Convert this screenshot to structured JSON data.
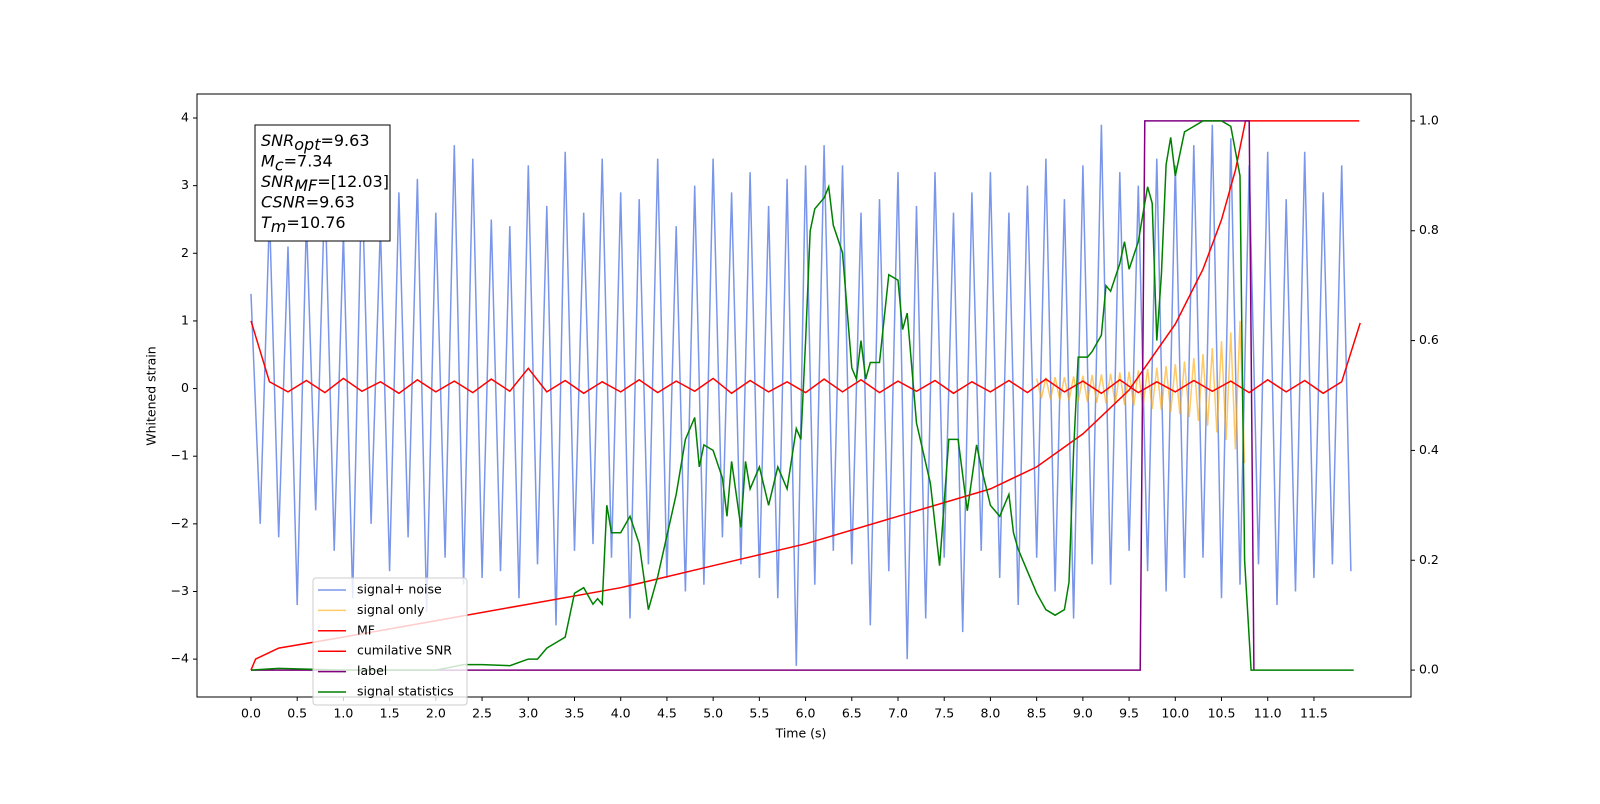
{
  "chart_data": {
    "type": "line",
    "x_label": "Time (s)",
    "y_label": "Whitened strain",
    "xlim": [
      -0.584,
      12.55
    ],
    "ylim": [
      -4.56,
      4.355
    ],
    "y2lim": [
      -0.049,
      1.049
    ],
    "xticks": [
      {
        "value": 0,
        "label": "0.0"
      },
      {
        "value": 0.5,
        "label": "0.5"
      },
      {
        "value": 1,
        "label": "1.0"
      },
      {
        "value": 1.5,
        "label": "1.5"
      },
      {
        "value": 2,
        "label": "2.0"
      },
      {
        "value": 2.5,
        "label": "2.5"
      },
      {
        "value": 3,
        "label": "3.0"
      },
      {
        "value": 3.5,
        "label": "3.5"
      },
      {
        "value": 4,
        "label": "4.0"
      },
      {
        "value": 4.5,
        "label": "4.5"
      },
      {
        "value": 5,
        "label": "5.0"
      },
      {
        "value": 5.5,
        "label": "5.5"
      },
      {
        "value": 6,
        "label": "6.0"
      },
      {
        "value": 6.5,
        "label": "6.5"
      },
      {
        "value": 7,
        "label": "7.0"
      },
      {
        "value": 7.5,
        "label": "7.5"
      },
      {
        "value": 8,
        "label": "8.0"
      },
      {
        "value": 8.5,
        "label": "8.5"
      },
      {
        "value": 9,
        "label": "9.0"
      },
      {
        "value": 9.5,
        "label": "9.5"
      },
      {
        "value": 10,
        "label": "10.0"
      },
      {
        "value": 10.5,
        "label": "10.5"
      },
      {
        "value": 11,
        "label": "11.0"
      },
      {
        "value": 11.5,
        "label": "11.5"
      }
    ],
    "yticks": [
      {
        "value": -4,
        "label": "−4"
      },
      {
        "value": -3,
        "label": "−3"
      },
      {
        "value": -2,
        "label": "−2"
      },
      {
        "value": -1,
        "label": "−1"
      },
      0,
      1,
      2,
      3,
      4
    ],
    "y2ticks": [
      {
        "value": 0,
        "label": "0.0"
      },
      {
        "value": 0.2,
        "label": "0.2"
      },
      {
        "value": 0.4,
        "label": "0.4"
      },
      {
        "value": 0.6,
        "label": "0.6"
      },
      {
        "value": 0.8,
        "label": "0.8"
      },
      {
        "value": 1,
        "label": "1.0"
      }
    ],
    "legend": "lower left",
    "annotation": [
      {
        "main": "SNR",
        "sub": "opt",
        "rest": "=9.63"
      },
      {
        "main": "M",
        "sub": "c",
        "rest": "=7.34"
      },
      {
        "main": "SNR",
        "sub": "MF",
        "rest": "=[12.03]"
      },
      {
        "main": "CSNR",
        "rest": "=9.63"
      },
      {
        "main": "T",
        "sub": "m",
        "rest": "=10.76"
      }
    ],
    "series": [
      {
        "name": "signal+ noise",
        "color": "#4169e1",
        "opacity": 0.7,
        "x": [
          0,
          0.1,
          0.2,
          0.3,
          0.4,
          0.5,
          0.6,
          0.7,
          0.8,
          0.9,
          1,
          1.1,
          1.2,
          1.3,
          1.4,
          1.5,
          1.6,
          1.7,
          1.8,
          1.9,
          2,
          2.1,
          2.2,
          2.3,
          2.4,
          2.5,
          2.6,
          2.7,
          2.8,
          2.9,
          3,
          3.1,
          3.2,
          3.3,
          3.4,
          3.5,
          3.6,
          3.7,
          3.8,
          3.9,
          4,
          4.1,
          4.2,
          4.3,
          4.4,
          4.5,
          4.6,
          4.7,
          4.8,
          4.9,
          5,
          5.1,
          5.2,
          5.3,
          5.4,
          5.5,
          5.6,
          5.7,
          5.8,
          5.9,
          6,
          6.1,
          6.2,
          6.3,
          6.4,
          6.5,
          6.6,
          6.7,
          6.8,
          6.9,
          7,
          7.1,
          7.2,
          7.3,
          7.4,
          7.5,
          7.6,
          7.7,
          7.8,
          7.9,
          8,
          8.1,
          8.2,
          8.3,
          8.4,
          8.5,
          8.6,
          8.7,
          8.8,
          8.9,
          9,
          9.1,
          9.2,
          9.3,
          9.4,
          9.5,
          9.6,
          9.7,
          9.8,
          9.9,
          10,
          10.1,
          10.2,
          10.3,
          10.4,
          10.5,
          10.6,
          10.7,
          10.8,
          10.9,
          11,
          11.1,
          11.2,
          11.3,
          11.4,
          11.5,
          11.6,
          11.7,
          11.8,
          11.9
        ],
        "values": [
          1.4,
          -2.0,
          2.6,
          -2.2,
          2.1,
          -3.2,
          2.5,
          -1.8,
          3.0,
          -2.4,
          2.3,
          -3.1,
          3.2,
          -2.0,
          2.4,
          -2.7,
          2.9,
          -2.2,
          3.1,
          -3.3,
          2.6,
          -2.5,
          3.6,
          -2.9,
          3.4,
          -2.8,
          2.5,
          -2.7,
          2.4,
          -3.1,
          3.3,
          -2.6,
          2.7,
          -3.5,
          3.5,
          -2.4,
          2.6,
          -2.3,
          3.4,
          -2.5,
          2.9,
          -3.4,
          2.8,
          -2.6,
          3.4,
          -2.8,
          2.4,
          -3.0,
          3.0,
          -2.9,
          3.4,
          -2.2,
          2.9,
          -2.6,
          3.2,
          -2.8,
          2.7,
          -3.1,
          3.1,
          -4.1,
          3.3,
          -2.9,
          3.6,
          -2.4,
          3.3,
          -2.6,
          2.6,
          -3.5,
          2.8,
          -2.7,
          3.2,
          -4.0,
          2.7,
          -3.4,
          3.2,
          -2.5,
          2.6,
          -3.6,
          2.9,
          -2.4,
          3.2,
          -2.8,
          2.6,
          -3.2,
          3.0,
          -2.5,
          3.4,
          -3.0,
          2.8,
          -3.4,
          3.3,
          -2.6,
          3.9,
          -2.9,
          3.2,
          -2.4,
          3.0,
          -2.7,
          3.4,
          -3.0,
          3.3,
          -2.8,
          3.6,
          -2.5,
          3.9,
          -3.1,
          3.7,
          -2.9,
          3.3,
          -2.6,
          3.5,
          -3.2,
          2.8,
          -3.0,
          3.5,
          -2.8,
          2.9,
          -2.6,
          3.3,
          -2.7
        ]
      },
      {
        "name": "signal only",
        "color": "#ffa500",
        "opacity": 0.6,
        "x": [
          8.5,
          8.55,
          8.6,
          8.65,
          8.7,
          8.75,
          8.8,
          8.85,
          8.9,
          8.95,
          9,
          9.05,
          9.1,
          9.15,
          9.2,
          9.25,
          9.3,
          9.35,
          9.4,
          9.45,
          9.5,
          9.55,
          9.6,
          9.65,
          9.7,
          9.75,
          9.8,
          9.85,
          9.9,
          9.95,
          10,
          10.05,
          10.1,
          10.15,
          10.2,
          10.25,
          10.3,
          10.35,
          10.4,
          10.45,
          10.5,
          10.55,
          10.6,
          10.65,
          10.7,
          10.75
        ],
        "values": [
          0.15,
          -0.15,
          0.16,
          -0.16,
          0.17,
          -0.17,
          0.17,
          -0.18,
          0.18,
          -0.19,
          0.19,
          -0.2,
          0.2,
          -0.21,
          0.21,
          -0.22,
          0.22,
          -0.23,
          0.24,
          -0.24,
          0.25,
          -0.26,
          0.27,
          -0.28,
          0.29,
          -0.3,
          0.31,
          -0.32,
          0.33,
          -0.35,
          0.36,
          -0.38,
          0.4,
          -0.42,
          0.45,
          -0.48,
          0.51,
          -0.55,
          0.6,
          -0.65,
          0.7,
          -0.76,
          0.83,
          -0.9,
          1.0,
          -1.1
        ]
      },
      {
        "name": "MF",
        "color": "#ff0000",
        "opacity": 1,
        "x": [
          0,
          0.2,
          0.4,
          0.6,
          0.8,
          1,
          1.2,
          1.4,
          1.6,
          1.8,
          2,
          2.2,
          2.4,
          2.6,
          2.8,
          3,
          3.2,
          3.4,
          3.6,
          3.8,
          4,
          4.2,
          4.4,
          4.6,
          4.8,
          5,
          5.2,
          5.4,
          5.6,
          5.8,
          6,
          6.2,
          6.4,
          6.6,
          6.8,
          7,
          7.2,
          7.4,
          7.6,
          7.8,
          8,
          8.2,
          8.4,
          8.6,
          8.8,
          9,
          9.2,
          9.4,
          9.6,
          9.8,
          10,
          10.2,
          10.4,
          10.6,
          10.8,
          11,
          11.2,
          11.4,
          11.6,
          11.8,
          12
        ],
        "values": [
          1.0,
          0.1,
          -0.05,
          0.12,
          -0.06,
          0.15,
          -0.04,
          0.1,
          -0.07,
          0.13,
          -0.05,
          0.11,
          -0.06,
          0.14,
          -0.04,
          0.3,
          -0.05,
          0.12,
          -0.07,
          0.1,
          -0.05,
          0.13,
          -0.06,
          0.11,
          -0.04,
          0.15,
          -0.07,
          0.12,
          -0.05,
          0.1,
          -0.06,
          0.14,
          -0.05,
          0.13,
          -0.06,
          0.11,
          -0.04,
          0.12,
          -0.07,
          0.1,
          -0.05,
          0.12,
          -0.06,
          0.14,
          -0.05,
          0.11,
          -0.07,
          0.13,
          -0.06,
          0.1,
          -0.05,
          0.12,
          -0.04,
          0.11,
          -0.06,
          0.13,
          -0.05,
          0.12,
          -0.07,
          0.1,
          0.97
        ]
      },
      {
        "name": "cumilative SNR",
        "color": "#ff0000",
        "opacity": 1,
        "axis": "y2",
        "x": [
          0,
          0.05,
          0.3,
          1,
          2,
          3,
          4,
          5,
          6,
          7,
          8,
          8.5,
          9,
          9.5,
          10,
          10.3,
          10.5,
          10.65,
          10.76,
          11.99
        ],
        "values": [
          0,
          0.02,
          0.04,
          0.06,
          0.09,
          0.12,
          0.15,
          0.19,
          0.23,
          0.28,
          0.33,
          0.37,
          0.43,
          0.51,
          0.63,
          0.73,
          0.82,
          0.91,
          1.0,
          1.0
        ]
      },
      {
        "name": "label",
        "color": "#800080",
        "opacity": 1,
        "axis": "y2",
        "x": [
          0,
          9.62,
          9.67,
          10.8,
          10.85
        ],
        "values": [
          0,
          0,
          1,
          1,
          0
        ]
      },
      {
        "name": "signal statistics",
        "color": "#008000",
        "opacity": 1,
        "axis": "y2",
        "x": [
          0,
          0.3,
          1,
          2,
          2.3,
          2.5,
          2.8,
          3,
          3.1,
          3.2,
          3.3,
          3.4,
          3.5,
          3.6,
          3.7,
          3.75,
          3.8,
          3.85,
          3.9,
          4,
          4.1,
          4.2,
          4.3,
          4.4,
          4.6,
          4.7,
          4.8,
          4.85,
          4.9,
          5,
          5.1,
          5.15,
          5.2,
          5.3,
          5.35,
          5.4,
          5.5,
          5.6,
          5.7,
          5.8,
          5.9,
          5.95,
          6,
          6.05,
          6.1,
          6.2,
          6.25,
          6.3,
          6.4,
          6.5,
          6.55,
          6.6,
          6.65,
          6.7,
          6.8,
          6.9,
          7,
          7.05,
          7.1,
          7.2,
          7.35,
          7.45,
          7.55,
          7.65,
          7.75,
          7.85,
          7.9,
          8,
          8.1,
          8.2,
          8.25,
          8.3,
          8.4,
          8.5,
          8.6,
          8.7,
          8.8,
          8.85,
          8.9,
          8.95,
          9.05,
          9.1,
          9.2,
          9.25,
          9.3,
          9.4,
          9.45,
          9.5,
          9.6,
          9.65,
          9.7,
          9.75,
          9.8,
          9.85,
          9.9,
          9.95,
          10,
          10.1,
          10.2,
          10.3,
          10.5,
          10.6,
          10.7,
          10.75,
          10.82,
          11,
          11.93
        ],
        "values": [
          0,
          0.003,
          0,
          0,
          0.01,
          0.01,
          0.008,
          0.02,
          0.02,
          0.04,
          0.05,
          0.06,
          0.14,
          0.15,
          0.12,
          0.13,
          0.12,
          0.3,
          0.25,
          0.25,
          0.28,
          0.23,
          0.11,
          0.17,
          0.32,
          0.42,
          0.46,
          0.37,
          0.41,
          0.4,
          0.35,
          0.28,
          0.38,
          0.26,
          0.38,
          0.33,
          0.37,
          0.3,
          0.37,
          0.33,
          0.44,
          0.42,
          0.6,
          0.8,
          0.84,
          0.86,
          0.88,
          0.81,
          0.76,
          0.55,
          0.53,
          0.6,
          0.53,
          0.56,
          0.56,
          0.72,
          0.71,
          0.62,
          0.65,
          0.45,
          0.34,
          0.19,
          0.42,
          0.42,
          0.29,
          0.41,
          0.37,
          0.3,
          0.28,
          0.32,
          0.25,
          0.22,
          0.18,
          0.14,
          0.11,
          0.1,
          0.11,
          0.16,
          0.4,
          0.57,
          0.57,
          0.58,
          0.61,
          0.7,
          0.69,
          0.74,
          0.78,
          0.73,
          0.78,
          0.83,
          0.88,
          0.85,
          0.6,
          0.72,
          0.92,
          0.97,
          0.9,
          0.98,
          0.99,
          1.0,
          1.0,
          0.99,
          0.9,
          0.2,
          0.0,
          0.0,
          0.0
        ]
      }
    ]
  }
}
